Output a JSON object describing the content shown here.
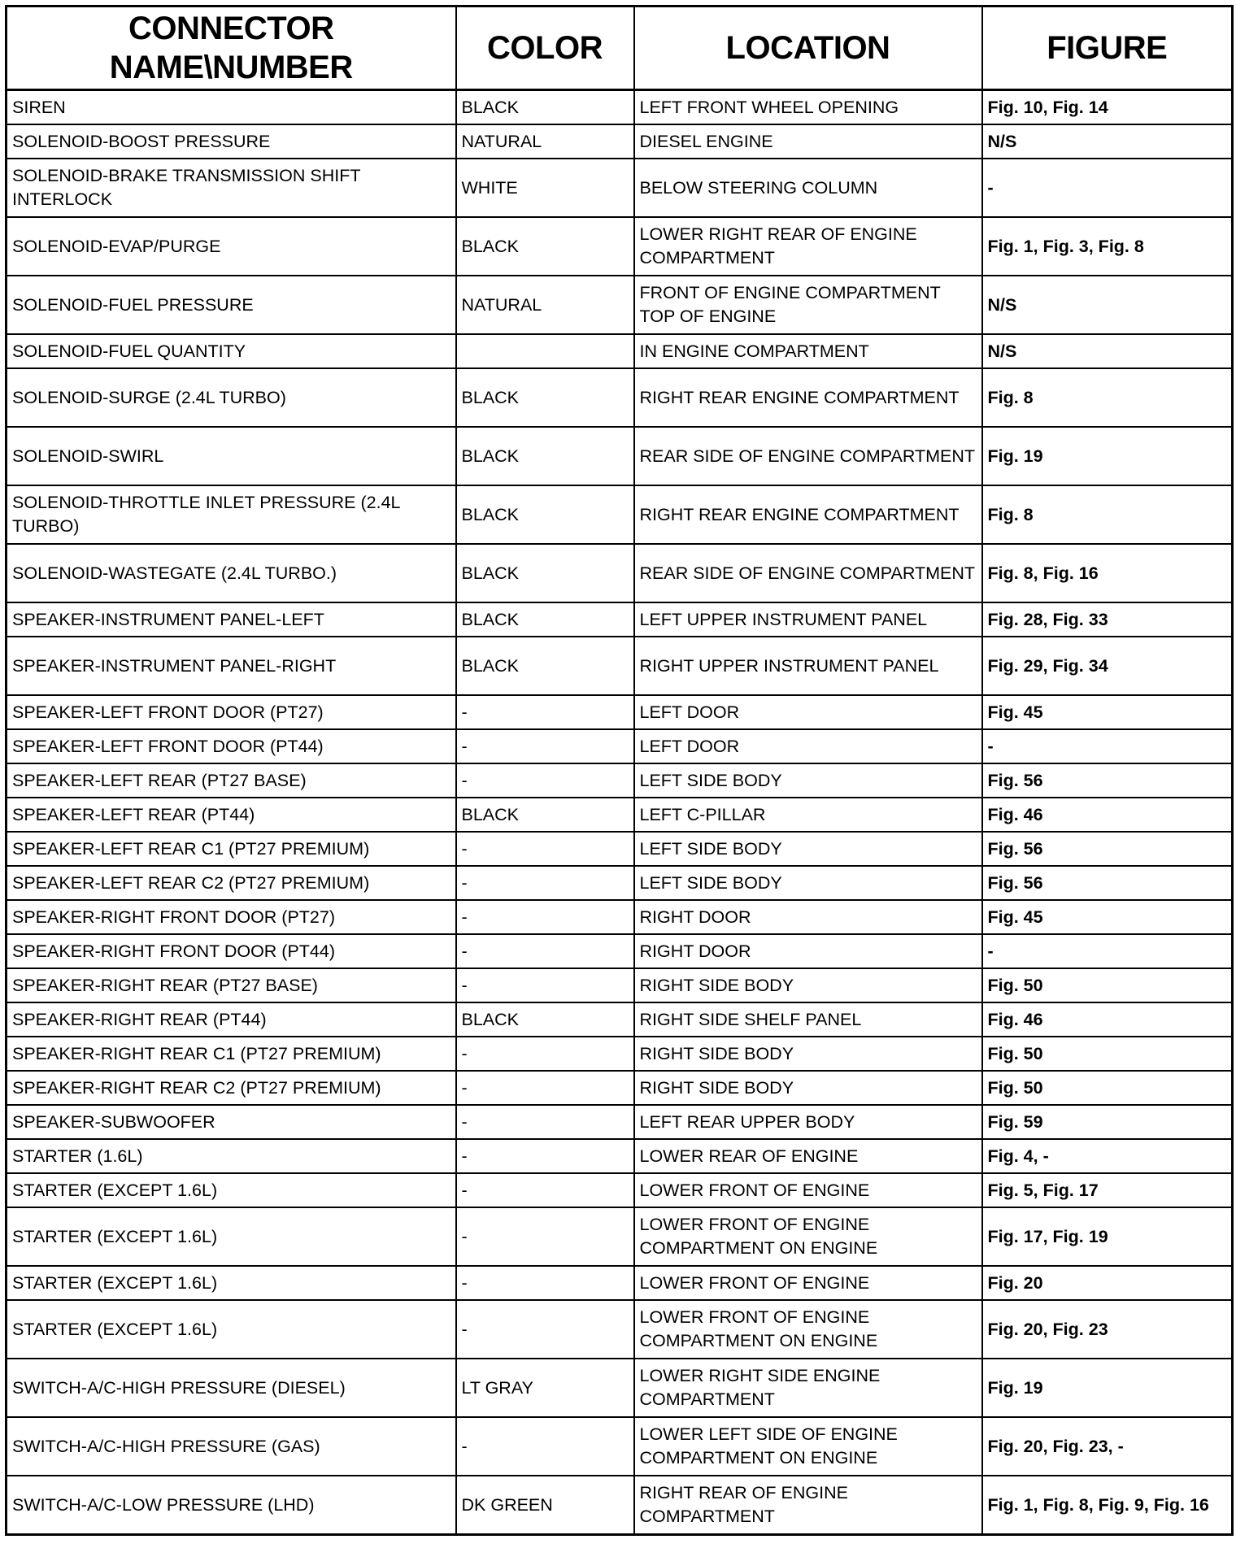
{
  "headers": {
    "name": "CONNECTOR NAME\\NUMBER",
    "color": "COLOR",
    "location": "LOCATION",
    "figure": "FIGURE"
  },
  "rows": [
    {
      "name": "SIREN",
      "color": "BLACK",
      "location": "LEFT FRONT WHEEL OPENING",
      "figure": "Fig. 10, Fig. 14",
      "lines": 1
    },
    {
      "name": "SOLENOID-BOOST PRESSURE",
      "color": "NATURAL",
      "location": "DIESEL ENGINE",
      "figure": "N/S",
      "lines": 1
    },
    {
      "name": "SOLENOID-BRAKE TRANSMISSION SHIFT INTERLOCK",
      "color": "WHITE",
      "location": "BELOW STEERING COLUMN",
      "figure": "-",
      "lines": 2
    },
    {
      "name": "SOLENOID-EVAP/PURGE",
      "color": "BLACK",
      "location": "LOWER RIGHT REAR OF ENGINE COMPARTMENT",
      "figure": "Fig. 1, Fig. 3, Fig. 8",
      "lines": 2
    },
    {
      "name": "SOLENOID-FUEL PRESSURE",
      "color": "NATURAL",
      "location": "FRONT OF ENGINE COMPARTMENT TOP OF ENGINE",
      "figure": "N/S",
      "lines": 2
    },
    {
      "name": "SOLENOID-FUEL QUANTITY",
      "color": "",
      "location": "IN ENGINE COMPARTMENT",
      "figure": "N/S",
      "lines": 1
    },
    {
      "name": "SOLENOID-SURGE (2.4L TURBO)",
      "color": "BLACK",
      "location": "RIGHT REAR ENGINE COMPARTMENT",
      "figure": "Fig. 8",
      "lines": 2
    },
    {
      "name": "SOLENOID-SWIRL",
      "color": "BLACK",
      "location": "REAR SIDE OF ENGINE COMPARTMENT",
      "figure": "Fig. 19",
      "lines": 2
    },
    {
      "name": "SOLENOID-THROTTLE INLET PRESSURE (2.4L TURBO)",
      "color": "BLACK",
      "location": "RIGHT REAR ENGINE COMPARTMENT",
      "figure": "Fig. 8",
      "lines": 2
    },
    {
      "name": "SOLENOID-WASTEGATE (2.4L TURBO.)",
      "color": "BLACK",
      "location": "REAR SIDE OF ENGINE COMPARTMENT",
      "figure": "Fig. 8, Fig. 16",
      "lines": 2
    },
    {
      "name": "SPEAKER-INSTRUMENT PANEL-LEFT",
      "color": "BLACK",
      "location": "LEFT UPPER INSTRUMENT PANEL",
      "figure": "Fig. 28, Fig. 33",
      "lines": 1
    },
    {
      "name": "SPEAKER-INSTRUMENT PANEL-RIGHT",
      "color": "BLACK",
      "location": "RIGHT UPPER INSTRUMENT PANEL",
      "figure": "Fig. 29, Fig. 34",
      "lines": 2
    },
    {
      "name": "SPEAKER-LEFT FRONT DOOR (PT27)",
      "color": "-",
      "location": "LEFT DOOR",
      "figure": "Fig. 45",
      "lines": 1
    },
    {
      "name": "SPEAKER-LEFT FRONT DOOR (PT44)",
      "color": "-",
      "location": "LEFT DOOR",
      "figure": "-",
      "lines": 1
    },
    {
      "name": "SPEAKER-LEFT REAR (PT27 BASE)",
      "color": "-",
      "location": "LEFT SIDE BODY",
      "figure": "Fig. 56",
      "lines": 1
    },
    {
      "name": "SPEAKER-LEFT REAR (PT44)",
      "color": "BLACK",
      "location": "LEFT C-PILLAR",
      "figure": "Fig. 46",
      "lines": 1
    },
    {
      "name": "SPEAKER-LEFT REAR C1 (PT27 PREMIUM)",
      "color": "-",
      "location": "LEFT SIDE BODY",
      "figure": "Fig. 56",
      "lines": 1
    },
    {
      "name": "SPEAKER-LEFT REAR C2 (PT27 PREMIUM)",
      "color": "-",
      "location": "LEFT SIDE BODY",
      "figure": "Fig. 56",
      "lines": 1
    },
    {
      "name": "SPEAKER-RIGHT FRONT DOOR (PT27)",
      "color": "-",
      "location": "RIGHT DOOR",
      "figure": "Fig. 45",
      "lines": 1
    },
    {
      "name": "SPEAKER-RIGHT FRONT DOOR (PT44)",
      "color": "-",
      "location": "RIGHT DOOR",
      "figure": "-",
      "lines": 1
    },
    {
      "name": "SPEAKER-RIGHT REAR (PT27 BASE)",
      "color": "-",
      "location": "RIGHT SIDE BODY",
      "figure": "Fig. 50",
      "lines": 1
    },
    {
      "name": "SPEAKER-RIGHT REAR (PT44)",
      "color": "BLACK",
      "location": "RIGHT SIDE SHELF PANEL",
      "figure": "Fig. 46",
      "lines": 1
    },
    {
      "name": "SPEAKER-RIGHT REAR C1 (PT27 PREMIUM)",
      "color": "-",
      "location": "RIGHT SIDE BODY",
      "figure": "Fig. 50",
      "lines": 1
    },
    {
      "name": "SPEAKER-RIGHT REAR C2 (PT27 PREMIUM)",
      "color": "-",
      "location": "RIGHT SIDE BODY",
      "figure": "Fig. 50",
      "lines": 1
    },
    {
      "name": "SPEAKER-SUBWOOFER",
      "color": "-",
      "location": "LEFT REAR UPPER BODY",
      "figure": "Fig. 59",
      "lines": 1
    },
    {
      "name": "STARTER (1.6L)",
      "color": "-",
      "location": "LOWER REAR OF ENGINE",
      "figure": "Fig. 4, -",
      "lines": 1
    },
    {
      "name": "STARTER (EXCEPT 1.6L)",
      "color": "-",
      "location": "LOWER FRONT OF ENGINE",
      "figure": "Fig. 5, Fig. 17",
      "lines": 1
    },
    {
      "name": "STARTER (EXCEPT 1.6L)",
      "color": "-",
      "location": "LOWER FRONT OF ENGINE COMPARTMENT ON ENGINE",
      "figure": "Fig. 17, Fig. 19",
      "lines": 2
    },
    {
      "name": "STARTER (EXCEPT 1.6L)",
      "color": "-",
      "location": "LOWER FRONT OF ENGINE",
      "figure": "Fig. 20",
      "lines": 1
    },
    {
      "name": "STARTER (EXCEPT 1.6L)",
      "color": "-",
      "location": "LOWER FRONT OF ENGINE COMPARTMENT ON ENGINE",
      "figure": "Fig. 20, Fig. 23",
      "lines": 2
    },
    {
      "name": "SWITCH-A/C-HIGH PRESSURE (DIESEL)",
      "color": "LT GRAY",
      "location": "LOWER RIGHT SIDE ENGINE COMPARTMENT",
      "figure": "Fig. 19",
      "lines": 2
    },
    {
      "name": "SWITCH-A/C-HIGH PRESSURE (GAS)",
      "color": "-",
      "location": "LOWER LEFT SIDE OF ENGINE COMPARTMENT ON ENGINE",
      "figure": "Fig. 20, Fig. 23, -",
      "lines": 2
    },
    {
      "name": "SWITCH-A/C-LOW PRESSURE (LHD)",
      "color": "DK GREEN",
      "location": "RIGHT REAR OF ENGINE COMPARTMENT",
      "figure": "Fig. 1, Fig. 8, Fig. 9, Fig. 16",
      "lines": 2
    }
  ]
}
